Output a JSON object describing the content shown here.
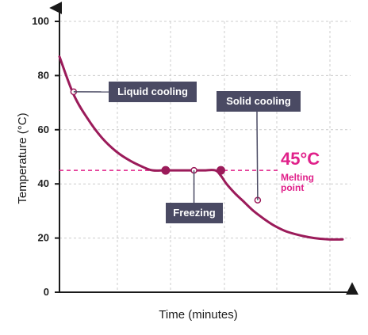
{
  "chart_data": {
    "type": "line",
    "title": "",
    "xlabel": "Time (minutes)",
    "ylabel": "Temperature (°C)",
    "ylim": [
      0,
      100
    ],
    "xlim": [
      0,
      100
    ],
    "yticks": [
      {
        "value": 0,
        "label": "0"
      },
      {
        "value": 20,
        "label": "20"
      },
      {
        "value": 40,
        "label": "40"
      },
      {
        "value": 60,
        "label": "60"
      },
      {
        "value": 80,
        "label": "80"
      },
      {
        "value": 100,
        "label": "100"
      }
    ],
    "grid": true,
    "series": [
      {
        "x": [
          0,
          5,
          10,
          15,
          20,
          25,
          30,
          33,
          37,
          40,
          43,
          47,
          51,
          55,
          57,
          59,
          62,
          65,
          68,
          71,
          73,
          76,
          80,
          85,
          90,
          95,
          100
        ],
        "y": [
          87,
          73,
          64,
          57,
          52,
          48.5,
          46,
          45,
          45,
          45,
          45,
          45,
          45,
          45,
          43,
          40,
          36.5,
          33.5,
          30.5,
          28,
          26.5,
          24.5,
          22.5,
          21,
          20,
          19.5,
          19.5
        ]
      }
    ],
    "markers": [
      {
        "x": 37.5,
        "y": 45,
        "style": "filled"
      },
      {
        "x": 47.5,
        "y": 45,
        "style": "open"
      },
      {
        "x": 57,
        "y": 45,
        "style": "filled"
      },
      {
        "x": 5,
        "y": 74,
        "style": "open"
      },
      {
        "x": 70,
        "y": 34,
        "style": "open"
      }
    ],
    "reference_line": {
      "y": 45,
      "value_label": "45°C",
      "text_label_lines": [
        "Melting",
        "point"
      ]
    },
    "annotations": [
      {
        "text": "Liquid cooling",
        "x": 5,
        "y": 74
      },
      {
        "text": "Freezing",
        "x": 47.5,
        "y": 45
      },
      {
        "text": "Solid cooling",
        "x": 70,
        "y": 34
      }
    ],
    "colors": {
      "line": "#9B1B5A",
      "reference": "#E0218A",
      "callout": "#4A4A63",
      "axis": "#1a1a1a",
      "grid": "#cccccc"
    }
  }
}
